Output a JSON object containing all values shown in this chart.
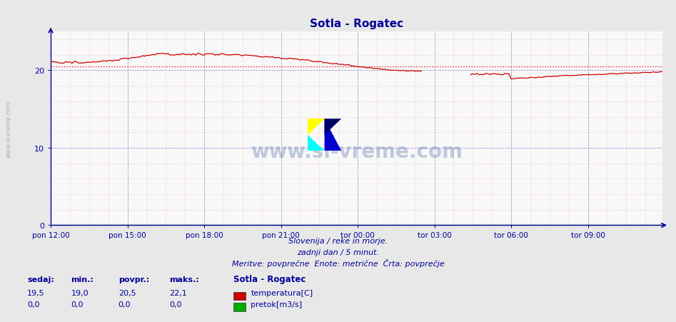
{
  "title": "Sotla - Rogatec",
  "title_color": "#000099",
  "bg_color": "#f0f0f0",
  "plot_bg_color": "#f8f8f8",
  "figure_bg_color": "#e8e8e8",
  "xlim": [
    0,
    287
  ],
  "ylim": [
    0,
    25.0
  ],
  "yticks": [
    0,
    10,
    20
  ],
  "xtick_labels": [
    "pon 12:00",
    "pon 15:00",
    "pon 18:00",
    "pon 21:00",
    "tor 00:00",
    "tor 03:00",
    "tor 06:00",
    "tor 09:00"
  ],
  "xtick_positions": [
    0,
    36,
    72,
    108,
    144,
    180,
    216,
    252
  ],
  "grid_color_major": "#9999dd",
  "grid_color_minor": "#ffbbbb",
  "line_color_temp": "#cc0000",
  "avg_line_color": "#cc0000",
  "avg_line_value": 20.5,
  "axis_color": "#000099",
  "tick_color": "#000099",
  "watermark_text": "www.si-vreme.com",
  "watermark_color": "#1a3a8a",
  "watermark_alpha": 0.25,
  "subtitle1": "Slovenija / reke in morje.",
  "subtitle2": "zadnji dan / 5 minut.",
  "subtitle3": "Meritve: povprečne  Enote: metrične  Črta: povprečje",
  "subtitle_color": "#000099",
  "legend_title": "Sotla - Rogatec",
  "legend_title_color": "#000099",
  "legend_color": "#000099",
  "stats_labels": [
    "sedaj:",
    "min.:",
    "povpr.:",
    "maks.:"
  ],
  "stats_temp": [
    19.5,
    19.0,
    20.5,
    22.1
  ],
  "stats_flow": [
    0.0,
    0.0,
    0.0,
    0.0
  ],
  "temp_legend_color": "#cc0000",
  "flow_legend_color": "#00aa00",
  "sidebar_text": "www.si-vreme.com",
  "sidebar_color": "#6688aa",
  "sidebar_alpha": 0.6
}
